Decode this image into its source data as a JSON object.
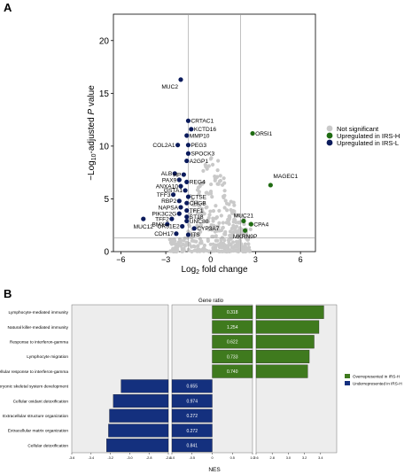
{
  "panels": {
    "a": {
      "letter": "A"
    },
    "b": {
      "letter": "B"
    }
  },
  "colors": {
    "not_significant": "#c9c9c9",
    "up_h": "#1f6b12",
    "up_l": "#0b1b5c",
    "bar_over": "#3f7a1e",
    "bar_under": "#14307e",
    "panel_bg": "#ededed"
  },
  "chart_data": [
    {
      "type": "scatter",
      "title": "",
      "xlabel_base": "Log",
      "xlabel_sub": "2",
      "xlabel_rest": " fold change",
      "ylabel_prefix": "−Log",
      "ylabel_sub": "10",
      "ylabel_mid": "-adjusted ",
      "ylabel_p": "P",
      "ylabel_rest": " value",
      "xlim": [
        -6.5,
        7
      ],
      "ylim": [
        0,
        22.5
      ],
      "xticks": [
        -6,
        -3,
        0,
        3,
        6
      ],
      "yticks": [
        0,
        5,
        10,
        15,
        20
      ],
      "vlines": [
        -1.5,
        2
      ],
      "hline": 1.3,
      "legend": {
        "position": "right",
        "entries": [
          {
            "label": "Not significant",
            "color_key": "not_significant"
          },
          {
            "label": "Upregulated in IRS-H",
            "color_key": "up_h"
          },
          {
            "label": "Upregulated in IRS-L",
            "color_key": "up_l"
          }
        ]
      },
      "labeled_points": [
        {
          "gene": "MUC2",
          "x": -2.0,
          "y": 16.3,
          "group": "L"
        },
        {
          "gene": "CRTAC1",
          "x": -1.5,
          "y": 12.4,
          "group": "L"
        },
        {
          "gene": "KCTD16",
          "x": -1.3,
          "y": 11.6,
          "group": "L"
        },
        {
          "gene": "MMP10",
          "x": -1.6,
          "y": 11.0,
          "group": "L"
        },
        {
          "gene": "COL2A1",
          "x": -2.2,
          "y": 10.1,
          "group": "L"
        },
        {
          "gene": "PEG3",
          "x": -1.5,
          "y": 10.1,
          "group": "L"
        },
        {
          "gene": "SPOCK3",
          "x": -1.5,
          "y": 9.3,
          "group": "L"
        },
        {
          "gene": "A2GP1",
          "x": -1.6,
          "y": 8.6,
          "group": "L"
        },
        {
          "gene": "ALB",
          "x": -2.4,
          "y": 7.4,
          "group": "L"
        },
        {
          "gene": "HP",
          "x": -1.8,
          "y": 7.3,
          "group": "L"
        },
        {
          "gene": "PAX9",
          "x": -2.1,
          "y": 6.8,
          "group": "L"
        },
        {
          "gene": "REG4",
          "x": -1.6,
          "y": 6.6,
          "group": "L"
        },
        {
          "gene": "ANXA10",
          "x": -2.0,
          "y": 6.2,
          "group": "L"
        },
        {
          "gene": "GSTA1",
          "x": -1.7,
          "y": 5.8,
          "group": "L"
        },
        {
          "gene": "TFF3",
          "x": -2.5,
          "y": 5.4,
          "group": "L"
        },
        {
          "gene": "CTSE",
          "x": -1.5,
          "y": 5.2,
          "group": "L"
        },
        {
          "gene": "RBP2",
          "x": -2.1,
          "y": 4.8,
          "group": "L"
        },
        {
          "gene": "CHGB",
          "x": -1.6,
          "y": 4.6,
          "group": "L"
        },
        {
          "gene": "NAPSA",
          "x": -2.0,
          "y": 4.2,
          "group": "L"
        },
        {
          "gene": "TFF1",
          "x": -1.6,
          "y": 3.9,
          "group": "L"
        },
        {
          "gene": "PIK3C2G",
          "x": -2.1,
          "y": 3.6,
          "group": "L"
        },
        {
          "gene": "ST18",
          "x": -1.6,
          "y": 3.3,
          "group": "L"
        },
        {
          "gene": "TFF2",
          "x": -2.6,
          "y": 3.1,
          "group": "L"
        },
        {
          "gene": "UNC80",
          "x": -1.6,
          "y": 2.9,
          "group": "L"
        },
        {
          "gene": "BMX",
          "x": -2.9,
          "y": 2.6,
          "group": "L"
        },
        {
          "gene": "OR51E2",
          "x": -1.9,
          "y": 2.4,
          "group": "L"
        },
        {
          "gene": "CYP3A7",
          "x": -1.1,
          "y": 2.2,
          "group": "L"
        },
        {
          "gene": "CDH17",
          "x": -2.3,
          "y": 1.7,
          "group": "L"
        },
        {
          "gene": "ITS",
          "x": -1.5,
          "y": 1.6,
          "group": "L"
        },
        {
          "gene": "MUC12",
          "x": -4.5,
          "y": 3.1,
          "group": "L"
        },
        {
          "gene": "OR5I1",
          "x": 2.8,
          "y": 11.2,
          "group": "H"
        },
        {
          "gene": "MAGEC1",
          "x": 4.0,
          "y": 6.3,
          "group": "H"
        },
        {
          "gene": "MUC21",
          "x": 2.2,
          "y": 2.9,
          "group": "H"
        },
        {
          "gene": "CPA4",
          "x": 2.7,
          "y": 2.6,
          "group": "H"
        },
        {
          "gene": "MKRN9P",
          "x": 2.3,
          "y": 2.0,
          "group": "H"
        }
      ]
    },
    {
      "type": "bar",
      "title": "Gene ratio",
      "xlabel": "NES",
      "orientation": "horizontal",
      "legend": {
        "position": "right",
        "entries": [
          {
            "label": "Overrepresented in IRS-H",
            "color_key": "bar_over"
          },
          {
            "label": "Underrepresented in IRS-H",
            "color_key": "bar_under"
          }
        ]
      },
      "axis_segments": [
        {
          "range": [
            -3.6,
            -2.6
          ],
          "ticks": [
            -3.6,
            -3.4,
            -3.2,
            -3.0,
            -2.8,
            -2.6
          ],
          "tick_labels": [
            "-3.6",
            "-3.4",
            "-3.2",
            "-3.0",
            "-2.8",
            "-2.6"
          ]
        },
        {
          "range": [
            -1.0,
            1.0
          ],
          "ticks": [
            -1.0,
            -0.5,
            0,
            0.5,
            1.0
          ],
          "tick_labels": [
            "-1.0",
            "-0.5",
            "0",
            "0.5",
            "1.0"
          ]
        },
        {
          "range": [
            2.6,
            3.6
          ],
          "ticks": [
            2.6,
            2.8,
            3.0,
            3.2,
            3.4
          ],
          "tick_labels": [
            "2.6",
            "2.8",
            "3.0",
            "3.2",
            "3.4"
          ]
        }
      ],
      "categories": [
        "Lymphocyte-mediated immunity",
        "Natural killer-mediated immunity",
        "Response to interferon-gamma",
        "Lymphocyte migration",
        "Cellular response to interferon-gamma",
        "Embryonic skeletal system development",
        "Cellular oxidant detoxification",
        "Extracellular structure organization",
        "Extracellular matrix organization",
        "Cellular detoxification"
      ],
      "values": [
        3.44,
        3.38,
        3.32,
        3.26,
        3.24,
        -3.09,
        -3.17,
        -3.21,
        -3.22,
        -3.24
      ],
      "gene_ratio_labels": [
        "0.318",
        "1.254",
        "0.622",
        "0.733",
        "0.740",
        "0.655",
        "0.974",
        "0.272",
        "0.272",
        "0.841"
      ]
    }
  ]
}
